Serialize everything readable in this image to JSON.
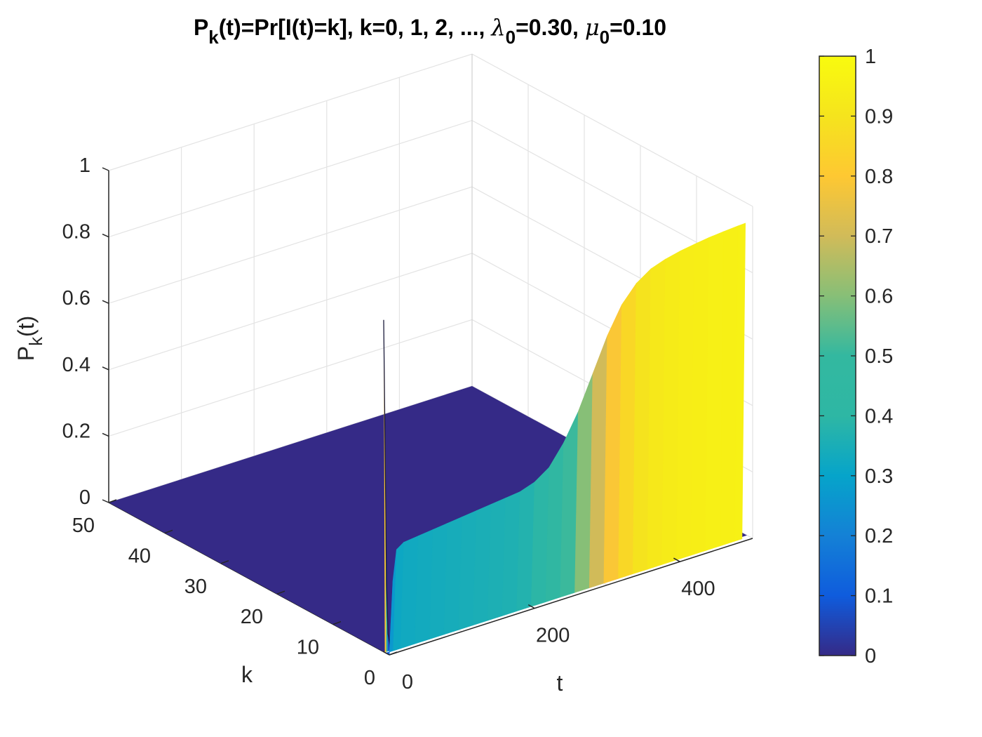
{
  "chart_data": {
    "type": "surface",
    "title_parts": {
      "p1": "P",
      "p1_sub": "k",
      "p2": "(t)=Pr[I(t)=k], k=0, 1, 2, ..., ",
      "lambda": "λ",
      "lambda_sub": "0",
      "lambda_val": "=0.30, ",
      "mu": "μ",
      "mu_sub": "0",
      "mu_val": "=0.10"
    },
    "xlabel": "t",
    "ylabel": "k",
    "zlabel_main": "P",
    "zlabel_sub": "k",
    "zlabel_tail": "(t)",
    "t_range": [
      0,
      500
    ],
    "k_range": [
      0,
      50
    ],
    "z_range": [
      0,
      1
    ],
    "t_ticks": [
      "0",
      "200",
      "400"
    ],
    "k_ticks": [
      "0",
      "10",
      "20",
      "30",
      "40",
      "50"
    ],
    "z_ticks": [
      "0",
      "0.2",
      "0.4",
      "0.6",
      "0.8",
      "1"
    ],
    "colorbar_ticks": [
      "0",
      "0.1",
      "0.2",
      "0.3",
      "0.4",
      "0.5",
      "0.6",
      "0.7",
      "0.8",
      "0.9",
      "1"
    ],
    "colormap": "parula",
    "grid": true,
    "series": [
      {
        "k": 0,
        "t": [
          0,
          5,
          10,
          20,
          40,
          60,
          80,
          100,
          120,
          140,
          160,
          180,
          200,
          220,
          240,
          260,
          280,
          300,
          320,
          340,
          360,
          380,
          400,
          420,
          440,
          460,
          480,
          490
        ],
        "p": [
          0.0,
          0.22,
          0.31,
          0.325,
          0.33,
          0.335,
          0.34,
          0.345,
          0.35,
          0.355,
          0.36,
          0.365,
          0.38,
          0.41,
          0.47,
          0.55,
          0.65,
          0.75,
          0.83,
          0.88,
          0.91,
          0.925,
          0.935,
          0.942,
          0.948,
          0.952,
          0.955,
          0.956
        ]
      },
      {
        "k": 1,
        "t": [
          0,
          2,
          4,
          6,
          10
        ],
        "p": [
          1.0,
          0.6,
          0.2,
          0.05,
          0.0
        ]
      }
    ]
  }
}
